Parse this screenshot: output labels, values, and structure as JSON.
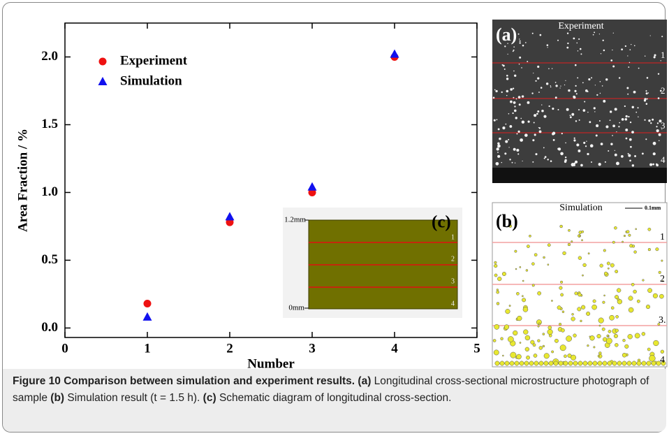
{
  "chart_data": {
    "type": "scatter",
    "x_label": "Number",
    "y_label": "Area Fraction / %",
    "x": [
      1,
      2,
      3,
      4
    ],
    "series": [
      {
        "name": "Experiment",
        "color": "#ee1111",
        "marker": "circle",
        "values": [
          0.18,
          0.78,
          1.0,
          2.0
        ]
      },
      {
        "name": "Simulation",
        "color": "#1111ee",
        "marker": "triangle",
        "values": [
          0.08,
          0.82,
          1.04,
          2.02
        ]
      }
    ],
    "xlim": [
      0,
      5
    ],
    "xticks": [
      0,
      1,
      2,
      3,
      4,
      5
    ],
    "ylim": [
      -0.07,
      2.25
    ],
    "yticks": [
      {
        "value": 0,
        "label": "0.0"
      },
      0.5,
      {
        "value": 1,
        "label": "1.0"
      },
      1.5,
      {
        "value": 2,
        "label": "2.0"
      }
    ],
    "grid": false,
    "legend": "upper left"
  },
  "panels": [
    {
      "label": "(a)",
      "title": "Experiment",
      "line_labels": [
        "1",
        "2",
        "3",
        "4"
      ]
    },
    {
      "label": "(b)",
      "title": "Simulation",
      "scale": "0.1mm",
      "line_labels": [
        "1",
        "2",
        "3.",
        "4"
      ]
    },
    {
      "label": "(c)",
      "top": "1.2mm",
      "bottom": "0mm",
      "line_labels": [
        "1",
        "2",
        "3",
        "4"
      ]
    }
  ],
  "caption": {
    "title": "Figure 10 Comparison between simulation and experiment results.",
    "a": "(a)",
    "a_text": "Longitudinal cross-sectional microstructure photograph of sample",
    "b": "(b)",
    "b_text": "Simulation result (t = 1.5 h).",
    "c": "(c)",
    "c_text": "Schematic diagram of longitudinal cross-section."
  }
}
